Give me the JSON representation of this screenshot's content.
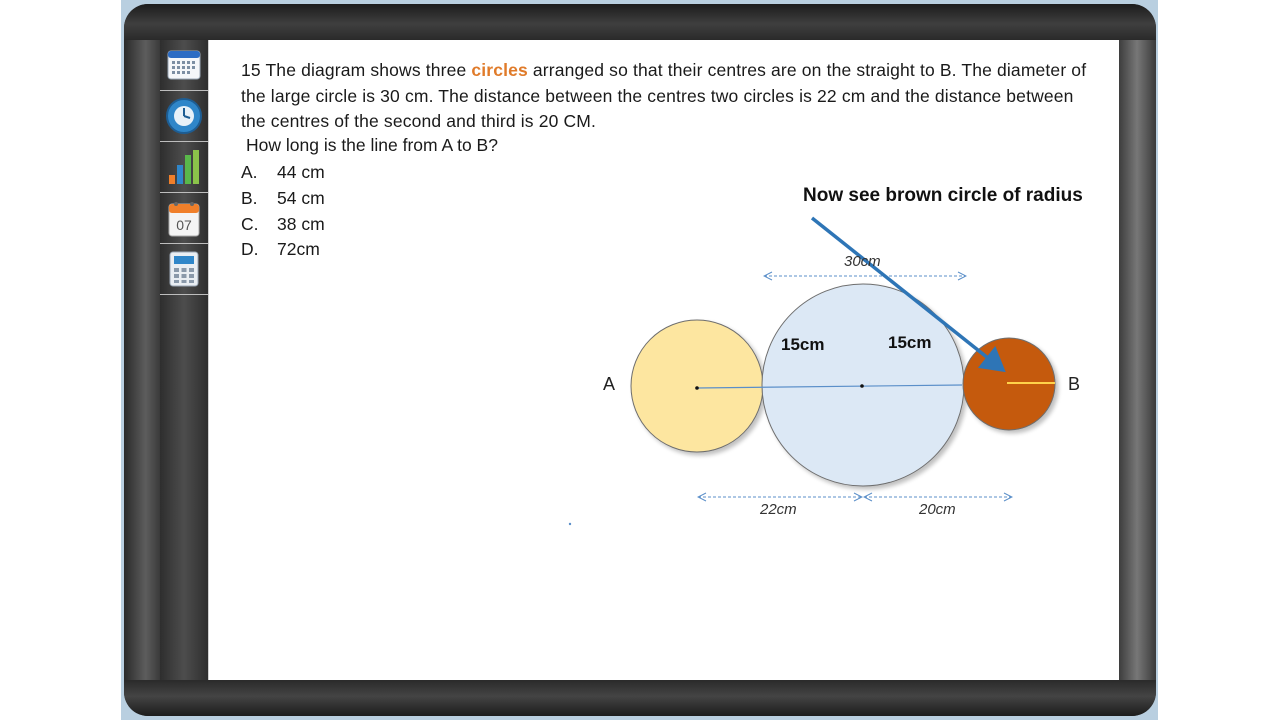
{
  "question": {
    "number": "15",
    "text_before": "The diagram shows three",
    "highlight": "circles",
    "text_after": "arranged so that their centres are on the straight to B. The diameter of the large circle is 30 cm. The distance between the centres two circles is 22 cm and the distance between the centres of the second and third is 20 CM.",
    "ask": "How long is the line from A to B?"
  },
  "options": [
    {
      "letter": "A.",
      "text": "44 cm"
    },
    {
      "letter": "B.",
      "text": "54 cm"
    },
    {
      "letter": "C.",
      "text": "38 cm"
    },
    {
      "letter": "D.",
      "text": "72cm"
    }
  ],
  "sidebar": {
    "tools": [
      {
        "icon": "calendar-grid-icon"
      },
      {
        "icon": "clock-icon"
      },
      {
        "icon": "bar-chart-icon"
      },
      {
        "icon": "calendar-icon",
        "label": "07"
      },
      {
        "icon": "calculator-icon"
      }
    ]
  },
  "diagram": {
    "note": "Now see brown circle of radius",
    "point_a": "A",
    "point_b": "B",
    "diameter_label": "30cm",
    "radius_left": "15cm",
    "radius_right": "15cm",
    "dist_1": "22cm",
    "dist_2": "20cm",
    "colors": {
      "small_circle": "#fde6a0",
      "large_circle": "#dce8f5",
      "brown_circle": "#c55a11",
      "arrow": "#2e75b6",
      "dim_line": "#5b8fc9"
    }
  }
}
